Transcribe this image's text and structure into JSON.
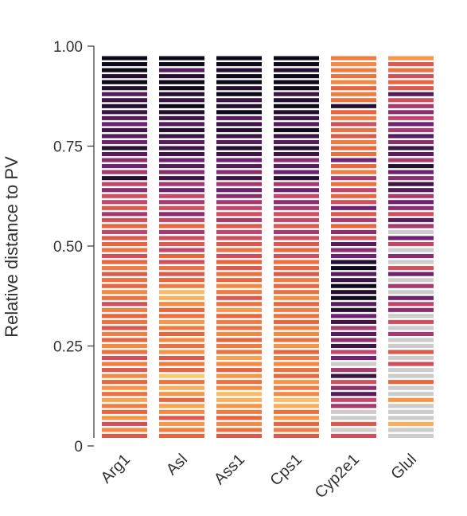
{
  "chart_data": {
    "type": "strip",
    "ylabel": "Relative distance to PV",
    "ylim": [
      0,
      1
    ],
    "yticks": [
      0,
      {
        "value": 0.25,
        "label": "0.25"
      },
      {
        "value": 0.5,
        "label": "0.50"
      },
      {
        "value": 0.75,
        "label": "0.75"
      },
      {
        "value": 1,
        "label": "1.00"
      }
    ],
    "colorscale": [
      [
        0,
        "#fbe28a"
      ],
      [
        0.3,
        "#f69545"
      ],
      [
        0.5,
        "#e8653e"
      ],
      [
        0.65,
        "#c2456b"
      ],
      [
        0.8,
        "#6e2270"
      ],
      [
        1,
        "#0e0a1c"
      ]
    ],
    "null_color": "#cccccc",
    "y": [
      0.025,
      0.04,
      0.055,
      0.07,
      0.085,
      0.1,
      0.115,
      0.13,
      0.145,
      0.16,
      0.175,
      0.19,
      0.205,
      0.22,
      0.235,
      0.25,
      0.265,
      0.28,
      0.295,
      0.31,
      0.325,
      0.34,
      0.355,
      0.37,
      0.385,
      0.4,
      0.415,
      0.43,
      0.445,
      0.46,
      0.475,
      0.49,
      0.505,
      0.52,
      0.535,
      0.55,
      0.565,
      0.58,
      0.595,
      0.61,
      0.625,
      0.64,
      0.655,
      0.67,
      0.685,
      0.7,
      0.715,
      0.73,
      0.745,
      0.76,
      0.775,
      0.79,
      0.805,
      0.82,
      0.835,
      0.85,
      0.865,
      0.88,
      0.895,
      0.91,
      0.925,
      0.94,
      0.955,
      0.97
    ],
    "series": [
      {
        "name": "Arg1",
        "values": [
          0.55,
          0.35,
          0.6,
          0.3,
          0.5,
          0.4,
          0.25,
          0.45,
          0.3,
          0.5,
          0.35,
          0.55,
          0.4,
          0.6,
          0.45,
          0.35,
          0.5,
          0.4,
          0.55,
          0.45,
          0.5,
          0.4,
          0.6,
          0.45,
          0.35,
          0.5,
          0.45,
          0.55,
          0.4,
          0.5,
          0.6,
          0.45,
          0.5,
          0.55,
          0.65,
          0.5,
          0.6,
          0.7,
          0.55,
          0.65,
          0.6,
          0.75,
          0.65,
          0.95,
          0.7,
          0.8,
          0.75,
          0.85,
          0.95,
          0.8,
          0.85,
          0.9,
          0.8,
          0.85,
          0.9,
          0.95,
          0.9,
          0.85,
          0.95,
          1,
          0.95,
          1,
          1,
          1
        ]
      },
      {
        "name": "Asl",
        "values": [
          0.5,
          0.4,
          0.3,
          0.55,
          0.35,
          0.25,
          0.5,
          0.3,
          0.2,
          0.45,
          0.1,
          0.5,
          0.4,
          0.55,
          0.3,
          0.45,
          0.35,
          0.5,
          0.4,
          0.3,
          0.45,
          0.5,
          0.35,
          0.2,
          0.15,
          0.4,
          0.5,
          0.55,
          0.45,
          0.6,
          0.5,
          0.65,
          0.55,
          0.6,
          0.7,
          0.5,
          0.65,
          0.75,
          0.6,
          0.7,
          0.65,
          0.8,
          0.7,
          0.9,
          0.75,
          0.85,
          0.8,
          0.9,
          0.9,
          0.85,
          0.9,
          0.95,
          0.85,
          0.9,
          0.95,
          1,
          0.9,
          0.95,
          1,
          1,
          0.95,
          0.85,
          1,
          1
        ]
      },
      {
        "name": "Ass1",
        "values": [
          0.55,
          0.45,
          0.35,
          0.5,
          0.4,
          0.3,
          0.2,
          0.15,
          0.35,
          0.45,
          0.3,
          0.5,
          0.35,
          0.25,
          0.45,
          0.4,
          0.5,
          0.35,
          0.45,
          0.4,
          0.5,
          0.3,
          0.45,
          0.55,
          0.4,
          0.35,
          0.5,
          0.45,
          0.55,
          0.5,
          0.6,
          0.45,
          0.55,
          0.6,
          0.65,
          0.55,
          0.7,
          0.6,
          0.65,
          0.7,
          0.75,
          0.8,
          0.7,
          0.9,
          0.75,
          0.85,
          0.8,
          0.9,
          0.95,
          0.85,
          0.9,
          0.95,
          0.9,
          0.85,
          1,
          0.95,
          0.9,
          1,
          0.95,
          1,
          1,
          0.95,
          1,
          1
        ]
      },
      {
        "name": "Cps1",
        "values": [
          0.55,
          0.4,
          0.5,
          0.3,
          0.45,
          0.2,
          0.15,
          0.35,
          0.4,
          0.3,
          0.5,
          0.45,
          0.35,
          0.4,
          0.5,
          0.3,
          0.45,
          0.35,
          0.4,
          0.5,
          0.45,
          0.4,
          0.5,
          0.35,
          0.45,
          0.5,
          0.4,
          0.55,
          0.5,
          0.45,
          0.6,
          0.5,
          0.55,
          0.6,
          0.7,
          0.55,
          0.65,
          0.6,
          0.7,
          0.75,
          0.65,
          0.8,
          0.7,
          0.95,
          0.8,
          0.85,
          0.75,
          0.9,
          0.95,
          0.85,
          0.9,
          1,
          0.85,
          0.9,
          0.95,
          1,
          0.95,
          0.9,
          1,
          1,
          1,
          0.95,
          1,
          1
        ]
      },
      {
        "name": "Cyp2e1",
        "values": [
          0.6,
          null,
          0.55,
          null,
          null,
          0.7,
          0.65,
          0.85,
          0.75,
          0.6,
          0.9,
          0.7,
          null,
          0.8,
          0.65,
          0.9,
          0.75,
          0.85,
          0.7,
          0.9,
          0.8,
          0.95,
          0.85,
          1,
          0.95,
          1,
          0.9,
          0.85,
          1,
          0.95,
          0.8,
          0.75,
          0.85,
          0.6,
          0.75,
          0.5,
          0.7,
          0.55,
          0.8,
          0.6,
          0.5,
          0.65,
          0.45,
          0.7,
          0.4,
          0.5,
          0.8,
          0.45,
          0.5,
          0.4,
          0.55,
          0.45,
          0.6,
          0.4,
          0.5,
          0.95,
          0.45,
          0.4,
          0.5,
          0.35,
          0.45,
          0.4,
          0.35,
          0.4
        ]
      },
      {
        "name": "Glul",
        "values": [
          null,
          null,
          0.2,
          null,
          null,
          null,
          0.3,
          null,
          null,
          0.5,
          null,
          null,
          0.6,
          null,
          0.55,
          null,
          null,
          0.7,
          null,
          0.6,
          null,
          0.75,
          0.65,
          0.8,
          null,
          0.7,
          null,
          0.8,
          0.6,
          null,
          0.75,
          null,
          0.65,
          0.8,
          null,
          0.7,
          0.85,
          0.6,
          0.75,
          0.8,
          0.7,
          0.85,
          0.9,
          0.75,
          0.8,
          0.95,
          0.7,
          0.85,
          0.9,
          0.75,
          0.85,
          0.7,
          0.8,
          0.65,
          0.75,
          0.7,
          0.6,
          0.85,
          0.55,
          0.5,
          0.6,
          0.45,
          0.55,
          0.3
        ]
      }
    ]
  }
}
